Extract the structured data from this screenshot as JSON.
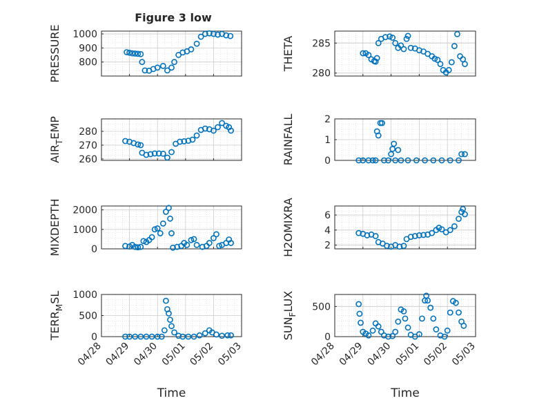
{
  "figure": {
    "title": "Figure 3 low",
    "xlabel": "Time",
    "x_ticklabels": [
      "04/28",
      "04/29",
      "04/30",
      "05/01",
      "05/02",
      "05/03"
    ],
    "marker_color": "#0072BD",
    "marker": "open-circle",
    "grid": "on (major + minor dotted)"
  },
  "chart_data": [
    {
      "type": "scatter",
      "ylabel": "PRESSURE",
      "yticks": [
        "800",
        "900",
        "1000"
      ],
      "ylim": [
        700,
        1020
      ],
      "xlim": [
        0,
        5
      ],
      "series": [
        {
          "points": [
            [
              0.9,
              870
            ],
            [
              1.0,
              866
            ],
            [
              1.1,
              862
            ],
            [
              1.2,
              860
            ],
            [
              1.3,
              858
            ],
            [
              1.4,
              856
            ],
            [
              1.45,
              800
            ],
            [
              1.55,
              740
            ],
            [
              1.7,
              738
            ],
            [
              1.85,
              750
            ],
            [
              2.0,
              760
            ],
            [
              2.2,
              772
            ],
            [
              2.35,
              740
            ],
            [
              2.5,
              760
            ],
            [
              2.6,
              800
            ],
            [
              2.75,
              850
            ],
            [
              2.9,
              868
            ],
            [
              3.05,
              876
            ],
            [
              3.2,
              890
            ],
            [
              3.4,
              930
            ],
            [
              3.55,
              980
            ],
            [
              3.7,
              1000
            ],
            [
              3.85,
              1004
            ],
            [
              4.0,
              1000
            ],
            [
              4.15,
              995
            ],
            [
              4.3,
              1000
            ],
            [
              4.45,
              990
            ],
            [
              4.6,
              985
            ]
          ]
        }
      ]
    },
    {
      "type": "scatter",
      "ylabel": "THETA",
      "yticks": [
        "280",
        "285"
      ],
      "ylim": [
        279.5,
        287
      ],
      "xlim": [
        0,
        5
      ],
      "series": [
        {
          "points": [
            [
              1.0,
              283.3
            ],
            [
              1.1,
              283.3
            ],
            [
              1.2,
              283
            ],
            [
              1.3,
              282.3
            ],
            [
              1.4,
              282
            ],
            [
              1.45,
              281.9
            ],
            [
              1.5,
              282.5
            ],
            [
              1.55,
              285
            ],
            [
              1.65,
              285.7
            ],
            [
              1.8,
              286
            ],
            [
              1.95,
              286.1
            ],
            [
              2.05,
              285.9
            ],
            [
              2.15,
              285
            ],
            [
              2.25,
              284.2
            ],
            [
              2.35,
              284.6
            ],
            [
              2.45,
              284
            ],
            [
              2.55,
              285.7
            ],
            [
              2.6,
              286.2
            ],
            [
              2.7,
              284.2
            ],
            [
              2.85,
              284.1
            ],
            [
              3.0,
              283.8
            ],
            [
              3.15,
              283.6
            ],
            [
              3.3,
              283.2
            ],
            [
              3.45,
              282.8
            ],
            [
              3.55,
              282.4
            ],
            [
              3.65,
              282.2
            ],
            [
              3.75,
              281.5
            ],
            [
              3.85,
              280.5
            ],
            [
              3.95,
              280.1
            ],
            [
              4.05,
              280.5
            ],
            [
              4.15,
              281.8
            ],
            [
              4.25,
              284.5
            ],
            [
              4.35,
              286.5
            ],
            [
              4.45,
              282.8
            ],
            [
              4.55,
              282.3
            ],
            [
              4.62,
              281.5
            ]
          ]
        }
      ]
    },
    {
      "type": "scatter",
      "ylabel": "AIR_TEMP",
      "yticks": [
        "260",
        "270",
        "280"
      ],
      "ylim": [
        259,
        289
      ],
      "xlim": [
        0,
        5
      ],
      "series": [
        {
          "points": [
            [
              0.85,
              273
            ],
            [
              1.0,
              272.5
            ],
            [
              1.15,
              271.5
            ],
            [
              1.3,
              270.5
            ],
            [
              1.4,
              270
            ],
            [
              1.45,
              264.5
            ],
            [
              1.6,
              263
            ],
            [
              1.75,
              263.5
            ],
            [
              1.9,
              264
            ],
            [
              2.05,
              264
            ],
            [
              2.2,
              263.8
            ],
            [
              2.35,
              261
            ],
            [
              2.5,
              265
            ],
            [
              2.65,
              271
            ],
            [
              2.8,
              272.5
            ],
            [
              2.95,
              272.8
            ],
            [
              3.1,
              273.2
            ],
            [
              3.25,
              274
            ],
            [
              3.4,
              277
            ],
            [
              3.55,
              281
            ],
            [
              3.7,
              282
            ],
            [
              3.85,
              281.5
            ],
            [
              4.0,
              280.5
            ],
            [
              4.15,
              283
            ],
            [
              4.3,
              286
            ],
            [
              4.45,
              284
            ],
            [
              4.55,
              283
            ],
            [
              4.62,
              280.5
            ]
          ]
        }
      ]
    },
    {
      "type": "scatter",
      "ylabel": "RAINFALL",
      "yticks": [
        "0",
        "1",
        "2"
      ],
      "ylim": [
        0,
        2
      ],
      "xlim": [
        0,
        5
      ],
      "series": [
        {
          "points": [
            [
              0.85,
              0
            ],
            [
              1.0,
              0
            ],
            [
              1.2,
              0
            ],
            [
              1.35,
              0
            ],
            [
              1.45,
              0
            ],
            [
              1.5,
              1.4
            ],
            [
              1.55,
              1.2
            ],
            [
              1.62,
              1.8
            ],
            [
              1.68,
              1.8
            ],
            [
              1.75,
              0
            ],
            [
              1.9,
              0
            ],
            [
              2.0,
              0.3
            ],
            [
              2.05,
              0.55
            ],
            [
              2.1,
              0.8
            ],
            [
              2.15,
              0
            ],
            [
              2.25,
              0.5
            ],
            [
              2.35,
              0
            ],
            [
              2.6,
              0
            ],
            [
              2.9,
              0
            ],
            [
              3.2,
              0
            ],
            [
              3.5,
              0
            ],
            [
              3.8,
              0
            ],
            [
              4.1,
              0
            ],
            [
              4.4,
              0
            ],
            [
              4.5,
              0.3
            ],
            [
              4.62,
              0.3
            ]
          ]
        }
      ]
    },
    {
      "type": "scatter",
      "ylabel": "MIXDEPTH",
      "yticks": [
        "0",
        "1000",
        "2000"
      ],
      "ylim": [
        0,
        2200
      ],
      "xlim": [
        0,
        5
      ],
      "series": [
        {
          "points": [
            [
              0.85,
              150
            ],
            [
              1.0,
              120
            ],
            [
              1.1,
              200
            ],
            [
              1.2,
              100
            ],
            [
              1.3,
              80
            ],
            [
              1.4,
              100
            ],
            [
              1.5,
              400
            ],
            [
              1.6,
              350
            ],
            [
              1.7,
              450
            ],
            [
              1.8,
              600
            ],
            [
              1.9,
              1000
            ],
            [
              2.0,
              1050
            ],
            [
              2.1,
              800
            ],
            [
              2.2,
              1300
            ],
            [
              2.3,
              1900
            ],
            [
              2.4,
              2100
            ],
            [
              2.45,
              1550
            ],
            [
              2.5,
              800
            ],
            [
              2.55,
              60
            ],
            [
              2.7,
              100
            ],
            [
              2.85,
              150
            ],
            [
              2.95,
              300
            ],
            [
              3.05,
              200
            ],
            [
              3.2,
              450
            ],
            [
              3.3,
              500
            ],
            [
              3.4,
              200
            ],
            [
              3.6,
              100
            ],
            [
              3.75,
              150
            ],
            [
              3.85,
              300
            ],
            [
              4.0,
              550
            ],
            [
              4.1,
              750
            ],
            [
              4.2,
              150
            ],
            [
              4.3,
              200
            ],
            [
              4.45,
              300
            ],
            [
              4.55,
              480
            ],
            [
              4.62,
              300
            ]
          ]
        }
      ]
    },
    {
      "type": "scatter",
      "ylabel": "H2OMIXRA",
      "yticks": [
        "2",
        "4",
        "6"
      ],
      "ylim": [
        1.5,
        7.2
      ],
      "xlim": [
        0,
        5
      ],
      "series": [
        {
          "points": [
            [
              0.85,
              3.6
            ],
            [
              1.0,
              3.5
            ],
            [
              1.15,
              3.3
            ],
            [
              1.3,
              3.4
            ],
            [
              1.45,
              3.2
            ],
            [
              1.55,
              2.4
            ],
            [
              1.7,
              2.2
            ],
            [
              1.85,
              1.9
            ],
            [
              2.0,
              1.8
            ],
            [
              2.15,
              2.0
            ],
            [
              2.3,
              1.8
            ],
            [
              2.45,
              1.9
            ],
            [
              2.55,
              2.8
            ],
            [
              2.7,
              3.1
            ],
            [
              2.85,
              3.2
            ],
            [
              3.0,
              3.3
            ],
            [
              3.15,
              3.35
            ],
            [
              3.3,
              3.4
            ],
            [
              3.45,
              3.6
            ],
            [
              3.6,
              4.0
            ],
            [
              3.7,
              4.3
            ],
            [
              3.8,
              4.1
            ],
            [
              3.95,
              3.7
            ],
            [
              4.1,
              4.0
            ],
            [
              4.25,
              4.5
            ],
            [
              4.4,
              5.5
            ],
            [
              4.5,
              6.4
            ],
            [
              4.55,
              6.8
            ],
            [
              4.62,
              6.1
            ]
          ]
        }
      ]
    },
    {
      "type": "scatter",
      "ylabel": "TERR_MSL",
      "yticks": [
        "0",
        "500",
        "1000"
      ],
      "ylim": [
        0,
        1000
      ],
      "xlim": [
        0,
        5
      ],
      "series": [
        {
          "points": [
            [
              0.85,
              0
            ],
            [
              1.0,
              0
            ],
            [
              1.2,
              0
            ],
            [
              1.4,
              0
            ],
            [
              1.6,
              0
            ],
            [
              1.8,
              0
            ],
            [
              2.0,
              0
            ],
            [
              2.15,
              0
            ],
            [
              2.25,
              150
            ],
            [
              2.3,
              850
            ],
            [
              2.35,
              650
            ],
            [
              2.4,
              550
            ],
            [
              2.45,
              400
            ],
            [
              2.5,
              250
            ],
            [
              2.6,
              100
            ],
            [
              2.75,
              20
            ],
            [
              2.9,
              0
            ],
            [
              3.1,
              0
            ],
            [
              3.3,
              0
            ],
            [
              3.5,
              30
            ],
            [
              3.7,
              80
            ],
            [
              3.85,
              150
            ],
            [
              3.95,
              100
            ],
            [
              4.1,
              50
            ],
            [
              4.3,
              20
            ],
            [
              4.5,
              30
            ],
            [
              4.62,
              30
            ]
          ]
        }
      ]
    },
    {
      "type": "scatter",
      "ylabel": "SUN_FLUX",
      "yticks": [
        "0",
        "500"
      ],
      "ylim": [
        0,
        700
      ],
      "xlim": [
        0,
        5
      ],
      "series": [
        {
          "points": [
            [
              0.85,
              540
            ],
            [
              0.88,
              380
            ],
            [
              0.92,
              230
            ],
            [
              1.0,
              80
            ],
            [
              1.1,
              50
            ],
            [
              1.2,
              20
            ],
            [
              1.35,
              100
            ],
            [
              1.45,
              220
            ],
            [
              1.55,
              170
            ],
            [
              1.65,
              80
            ],
            [
              1.75,
              20
            ],
            [
              1.9,
              0
            ],
            [
              2.05,
              10
            ],
            [
              2.15,
              80
            ],
            [
              2.25,
              250
            ],
            [
              2.35,
              450
            ],
            [
              2.45,
              420
            ],
            [
              2.5,
              300
            ],
            [
              2.6,
              150
            ],
            [
              2.7,
              30
            ],
            [
              2.85,
              0
            ],
            [
              3.0,
              40
            ],
            [
              3.1,
              300
            ],
            [
              3.2,
              600
            ],
            [
              3.25,
              680
            ],
            [
              3.3,
              600
            ],
            [
              3.4,
              480
            ],
            [
              3.5,
              300
            ],
            [
              3.6,
              120
            ],
            [
              3.75,
              20
            ],
            [
              3.9,
              0
            ],
            [
              4.0,
              100
            ],
            [
              4.1,
              400
            ],
            [
              4.2,
              590
            ],
            [
              4.3,
              560
            ],
            [
              4.4,
              400
            ],
            [
              4.5,
              250
            ],
            [
              4.58,
              180
            ]
          ]
        }
      ]
    }
  ]
}
